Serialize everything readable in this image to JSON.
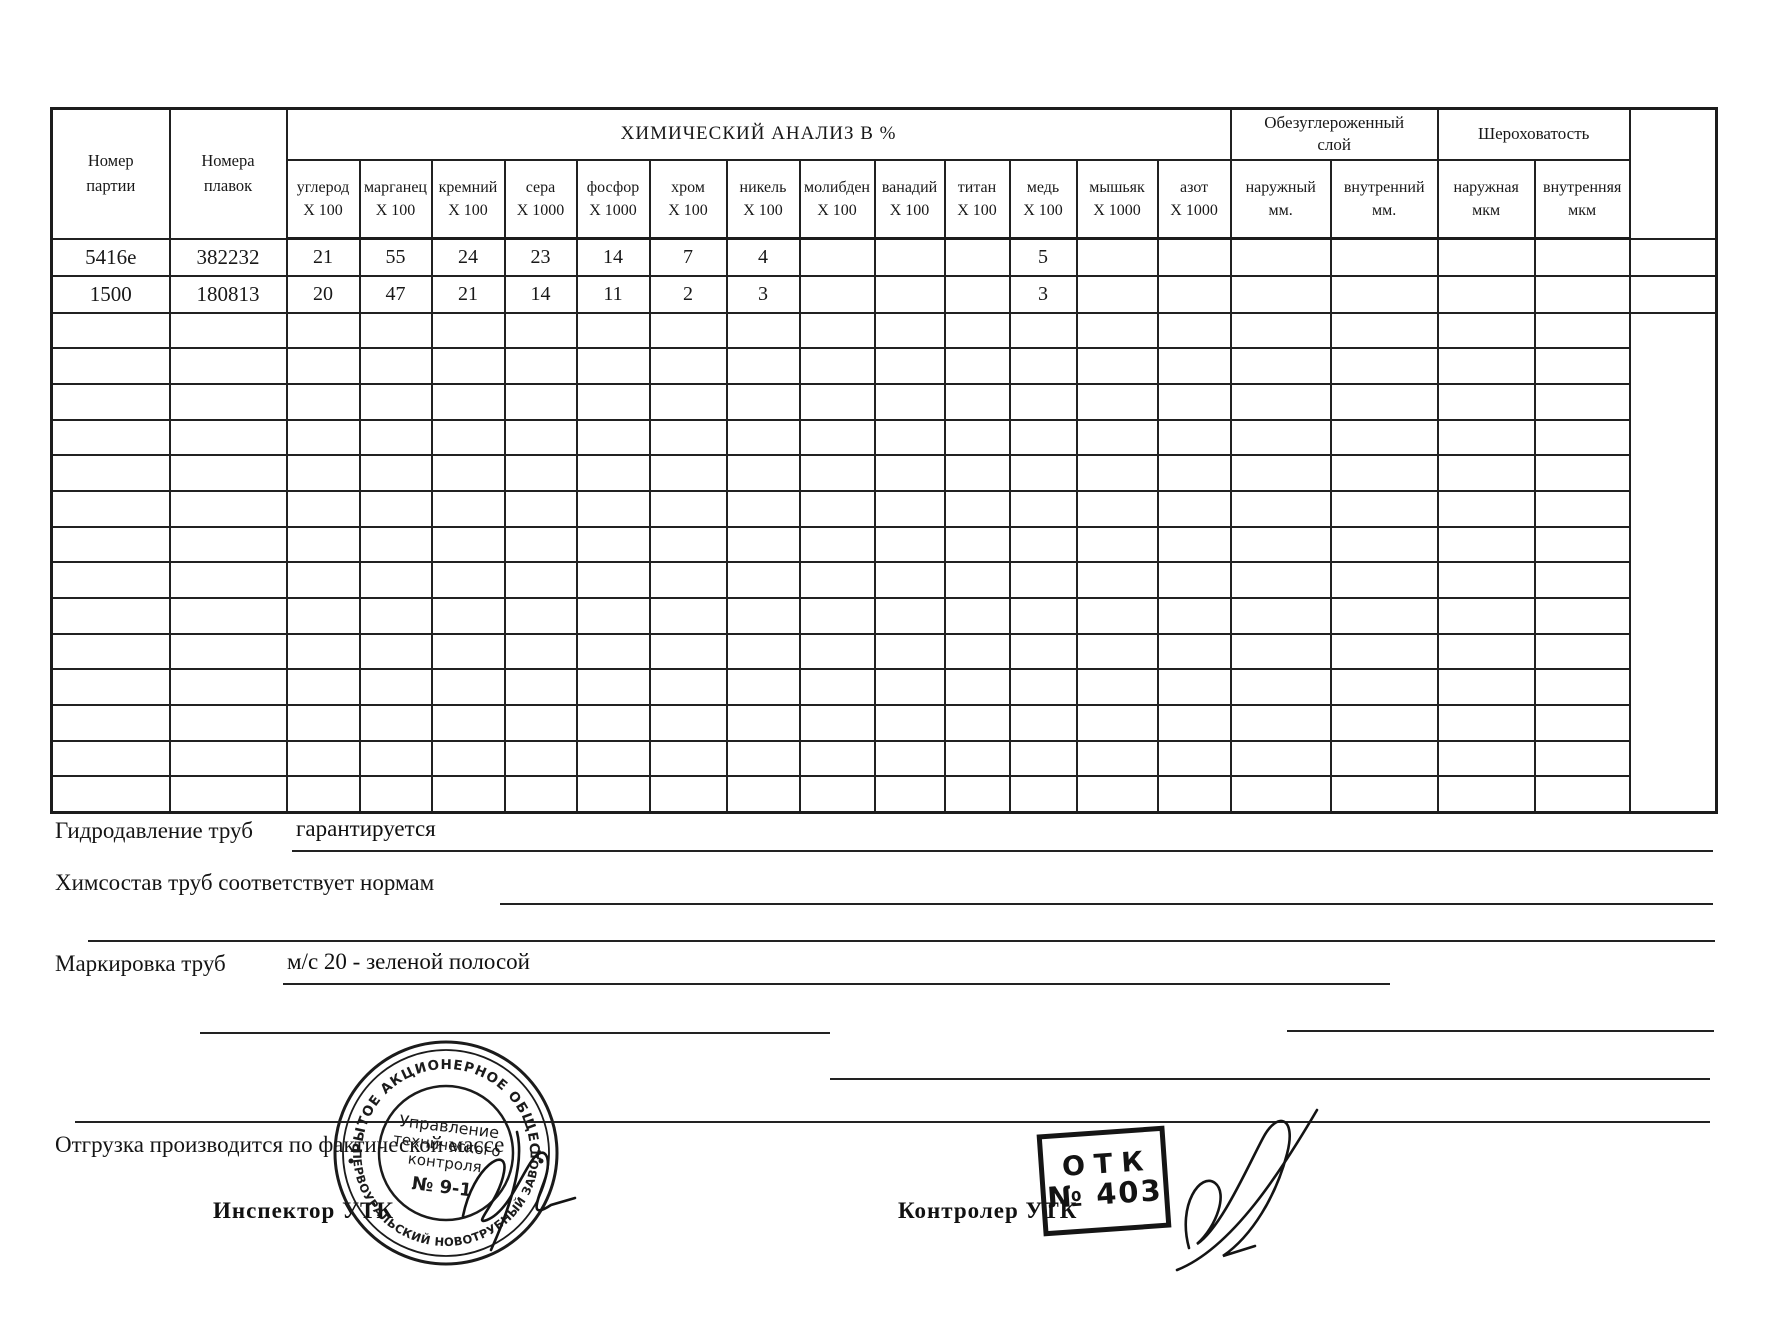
{
  "table": {
    "columns": {
      "batch": "Номер\nпартии",
      "heats": "Номера\nплавок",
      "chem_group": "ХИМИЧЕСКИЙ АНАЛИЗ В  %",
      "decarb_group": "Обезуглероженный\nслой",
      "rough_group": "Шероховатость",
      "chem": [
        "углерод\nX 100",
        "марганец\nX 100",
        "кремний\nX 100",
        "сера\nX 1000",
        "фосфор\nX 1000",
        "хром\nX 100",
        "никель\nX 100",
        "молибден\nX 100",
        "ванадий\nX 100",
        "титан\nX 100",
        "медь\nX 100",
        "мышьяк\nX 1000",
        "азот\nX 1000"
      ],
      "decarb": [
        "наружный\nмм.",
        "внутренний\nмм."
      ],
      "rough": [
        "наружная\nмкм",
        "внутренняя\nмкм"
      ]
    },
    "rows": [
      {
        "batch": "5416е",
        "heat": "382232",
        "cells": [
          "21",
          "55",
          "24",
          "23",
          "14",
          "7",
          "4",
          "",
          "",
          "",
          "5",
          "",
          "",
          "",
          "",
          "",
          ""
        ]
      },
      {
        "batch": "1500",
        "heat": "180813",
        "cells": [
          "20",
          "47",
          "21",
          "14",
          "11",
          "2",
          "3",
          "",
          "",
          "",
          "3",
          "",
          "",
          "",
          "",
          "",
          ""
        ]
      }
    ],
    "empty_row_count": 14
  },
  "fields": {
    "hydro_label": "Гидродавление труб",
    "hydro_value": "гарантируется",
    "chem_label": "Химсостав труб соответствует нормам",
    "marking_label": "Маркировка труб",
    "marking_value": "м/с 20 - зеленой полосой",
    "shipping_note": "Отгрузка производится по фактической массе"
  },
  "signatures": {
    "inspector_label": "Инспектор  УТК",
    "controller_label": "Контролер УТК"
  },
  "stamps": {
    "round": {
      "ring_top": "ОТКРЫТОЕ АКЦИОНЕРНОЕ ОБЩЕСТВО",
      "ring_bottom": "«ПЕРВОУРАЛЬСКИЙ НОВОТРУБНЫЙ ЗАВОД»",
      "line1": "Управление",
      "line2": "технического",
      "line3": "контроля",
      "line4": "№ 9-1"
    },
    "rect": {
      "line1": "ОТК",
      "line2": "№ 403"
    }
  },
  "colors": {
    "ink": "#1b1b1b",
    "paper": "#ffffff"
  }
}
